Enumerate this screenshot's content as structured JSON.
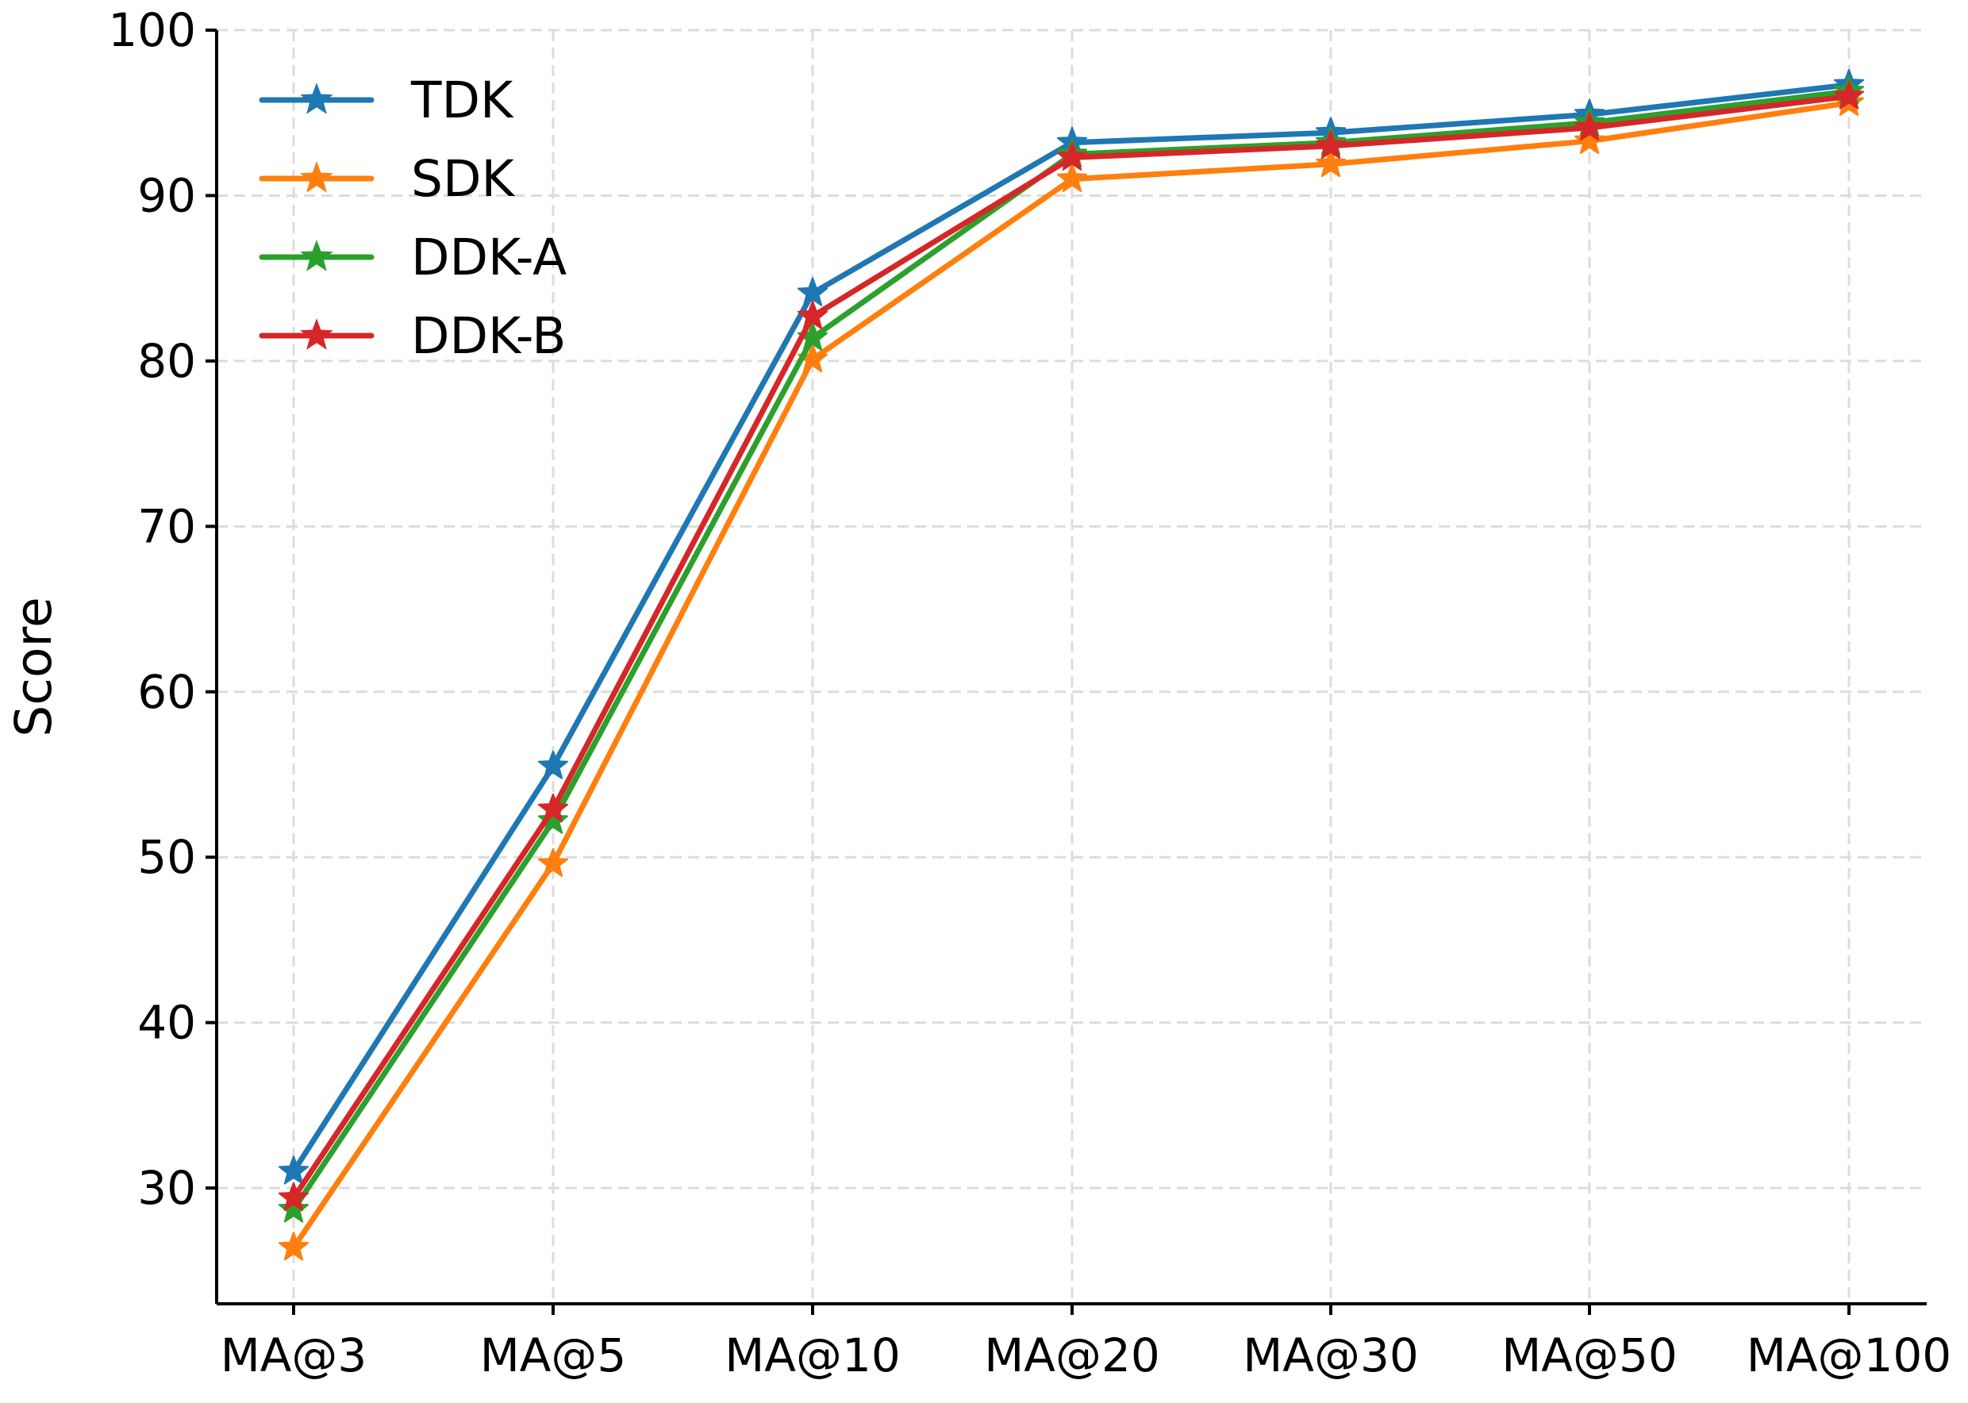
{
  "chart_data": {
    "type": "line",
    "title": "",
    "xlabel": "",
    "ylabel": "Score",
    "categories": [
      "MA@3",
      "MA@5",
      "MA@10",
      "MA@20",
      "MA@30",
      "MA@50",
      "MA@100"
    ],
    "yticks": [
      "30",
      "40",
      "50",
      "60",
      "70",
      "80",
      "90",
      "100"
    ],
    "ylim": [
      23,
      100
    ],
    "grid": true,
    "legend_position": "upper-left",
    "marker": "star",
    "series": [
      {
        "name": "TDK",
        "color": "#1f77b4",
        "values": [
          31.0,
          55.5,
          84.1,
          93.2,
          93.8,
          94.9,
          96.7
        ]
      },
      {
        "name": "SDK",
        "color": "#ff7f0e",
        "values": [
          26.4,
          49.6,
          80.1,
          91.0,
          91.9,
          93.3,
          95.6
        ]
      },
      {
        "name": "DDK-A",
        "color": "#2ca02c",
        "values": [
          28.7,
          52.2,
          81.4,
          92.5,
          93.2,
          94.4,
          96.3
        ]
      },
      {
        "name": "DDK-B",
        "color": "#d62728",
        "values": [
          29.4,
          52.9,
          82.7,
          92.3,
          93.0,
          94.1,
          96.0
        ]
      }
    ]
  }
}
